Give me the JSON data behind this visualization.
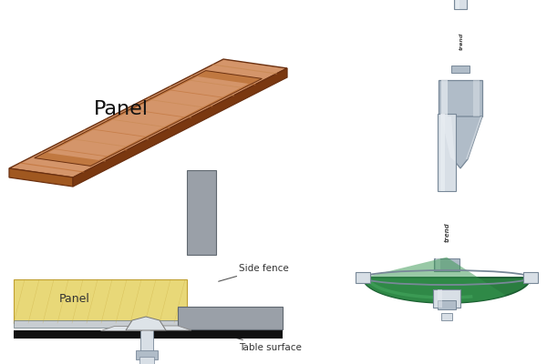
{
  "bg_color": "#ffffff",
  "panel_label": "Panel",
  "panel_label_fontsize": 16,
  "side_fence_label": "Side fence",
  "table_surface_label": "Table surface",
  "panel_small_label": "Panel",
  "wood_light": "#d4956a",
  "wood_mid": "#c07840",
  "wood_dark": "#8b4010",
  "wood_edge": "#6b3010",
  "wood_stripe1": "#bf7035",
  "wood_stripe2": "#c88850",
  "wood_front": "#a05820",
  "wood_bottom": "#7a3810",
  "gray_light": "#c8cdd2",
  "gray_mid": "#9aa5b0",
  "gray_dark": "#6a7880",
  "green_cutter": "#2a7d40",
  "green_mid": "#35954e",
  "green_light": "#55b870",
  "silver_light": "#d8dfe6",
  "silver_mid": "#b0bcc8",
  "silver_dark": "#788898",
  "silver_bright": "#e8edf2",
  "yellow_panel": "#e8d878",
  "yellow_dark": "#c0a030",
  "black": "#111111",
  "annotation_color": "#333333",
  "fence_gray": "#9aa0a8",
  "fence_dark": "#606870"
}
